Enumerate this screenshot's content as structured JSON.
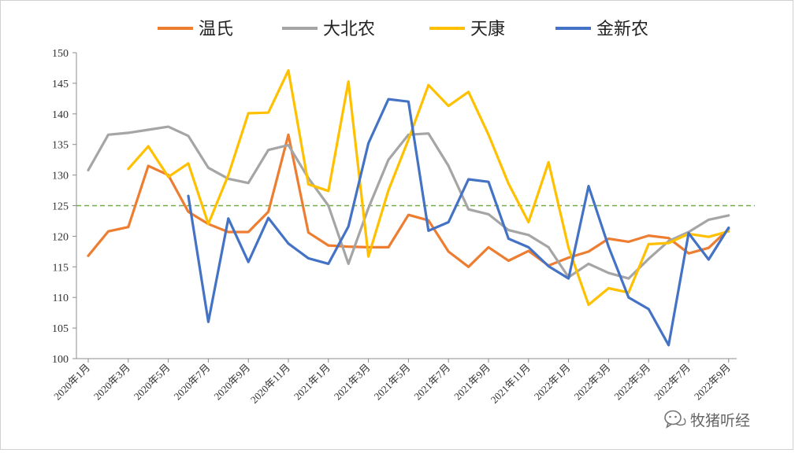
{
  "chart_data": {
    "type": "line",
    "title": "",
    "xlabel": "",
    "ylabel": "",
    "ylim": [
      100,
      150
    ],
    "yticks": [
      100,
      105,
      110,
      115,
      120,
      125,
      130,
      135,
      140,
      145,
      150
    ],
    "x_tick_labels": [
      "2020年1月",
      "2020年3月",
      "2020年5月",
      "2020年7月",
      "2020年9月",
      "2020年11月",
      "2021年1月",
      "2021年3月",
      "2021年5月",
      "2021年7月",
      "2021年9月",
      "2021年11月",
      "2022年1月",
      "2022年3月",
      "2022年5月",
      "2022年7月",
      "2022年9月"
    ],
    "grid": false,
    "legend_position": "top",
    "reference_line": {
      "y": 125,
      "color": "#70ad47",
      "style": "dashed"
    },
    "series": [
      {
        "name": "温氏",
        "color": "#ed7d31",
        "values": [
          116.8,
          120.8,
          121.5,
          131.5,
          130.0,
          124.0,
          122.0,
          120.7,
          120.7,
          124.0,
          136.6,
          120.6,
          118.5,
          118.3,
          118.2,
          118.2,
          123.5,
          122.6,
          117.5,
          115.0,
          118.2,
          116.0,
          117.6,
          115.2,
          116.5,
          117.5,
          119.6,
          119.1,
          120.1,
          119.7,
          117.2,
          118.1,
          121.2
        ]
      },
      {
        "name": "大北农",
        "color": "#a5a5a5",
        "values": [
          130.8,
          136.6,
          136.9,
          137.4,
          137.9,
          136.4,
          131.2,
          129.4,
          128.7,
          134.1,
          134.9,
          129.5,
          125.0,
          115.5,
          124.6,
          132.5,
          136.6,
          136.8,
          131.5,
          124.4,
          123.6,
          121.0,
          120.2,
          118.2,
          113.3,
          115.5,
          114.0,
          113.1,
          116.3,
          119.2,
          120.7,
          122.7,
          123.4
        ]
      },
      {
        "name": "天康",
        "color": "#ffc000",
        "values": [
          null,
          null,
          131.0,
          134.7,
          129.7,
          131.9,
          122.0,
          130.0,
          140.1,
          140.2,
          147.1,
          128.5,
          127.4,
          145.3,
          116.7,
          127.5,
          135.8,
          144.7,
          141.3,
          143.6,
          136.6,
          128.6,
          122.3,
          132.1,
          118.1,
          108.8,
          111.5,
          110.8,
          118.7,
          118.9,
          120.4,
          119.9,
          120.8
        ]
      },
      {
        "name": "金新农",
        "color": "#4472c4",
        "values": [
          null,
          null,
          null,
          null,
          null,
          126.6,
          106.0,
          122.9,
          115.8,
          123.0,
          118.8,
          116.4,
          115.5,
          121.6,
          135.2,
          142.4,
          142.0,
          120.9,
          122.3,
          129.3,
          128.9,
          119.6,
          118.2,
          115.1,
          113.1,
          128.2,
          118.3,
          110.0,
          108.1,
          102.2,
          120.5,
          116.2,
          121.4
        ]
      }
    ]
  },
  "watermark": {
    "text": "牧猪听经",
    "icon": "wechat-chat-icon"
  }
}
